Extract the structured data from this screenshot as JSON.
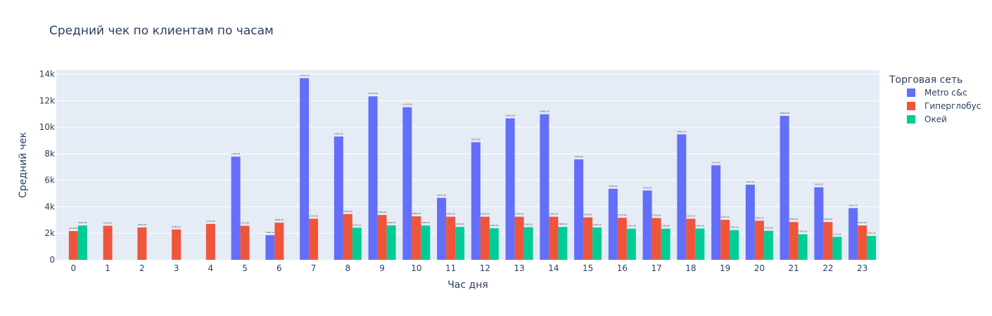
{
  "chart_data": {
    "type": "bar",
    "title": "Средний чек по клиентам по часам",
    "xlabel": "Час дня",
    "ylabel": "Средний чек",
    "ylim": [
      0,
      14300
    ],
    "yticks": [
      0,
      2000,
      4000,
      6000,
      8000,
      10000,
      12000,
      14000
    ],
    "ytick_labels": [
      "0",
      "2k",
      "4k",
      "6k",
      "8k",
      "10k",
      "12k",
      "14k"
    ],
    "grid": true,
    "legend_title": "Торговая сеть",
    "legend_position": "right",
    "categories": [
      "0",
      "1",
      "2",
      "3",
      "4",
      "5",
      "6",
      "7",
      "8",
      "9",
      "10",
      "11",
      "12",
      "13",
      "14",
      "15",
      "16",
      "17",
      "18",
      "19",
      "20",
      "21",
      "22",
      "23"
    ],
    "series": [
      {
        "name": "Metro c&c",
        "color": "#636efa",
        "values": [
          null,
          null,
          null,
          null,
          null,
          7780,
          1860,
          13700,
          9300,
          12330,
          11510,
          4670,
          8870,
          10670,
          10980,
          7580,
          5360,
          5230,
          9460,
          7130,
          5670,
          10860,
          5470,
          3900
        ]
      },
      {
        "name": "Гиперглобус",
        "color": "#ef553b",
        "values": [
          2170,
          2570,
          2440,
          2290,
          2710,
          2570,
          2800,
          3100,
          3450,
          3380,
          3280,
          3250,
          3250,
          3250,
          3250,
          3200,
          3170,
          3150,
          3100,
          3020,
          2950,
          2850,
          2850,
          2590
        ]
      },
      {
        "name": "Окей",
        "color": "#00cc96",
        "values": [
          2590,
          null,
          null,
          null,
          null,
          null,
          null,
          null,
          2420,
          2600,
          2590,
          2480,
          2380,
          2460,
          2480,
          2440,
          2350,
          2350,
          2360,
          2240,
          2190,
          1930,
          1730,
          1800
        ]
      }
    ]
  }
}
